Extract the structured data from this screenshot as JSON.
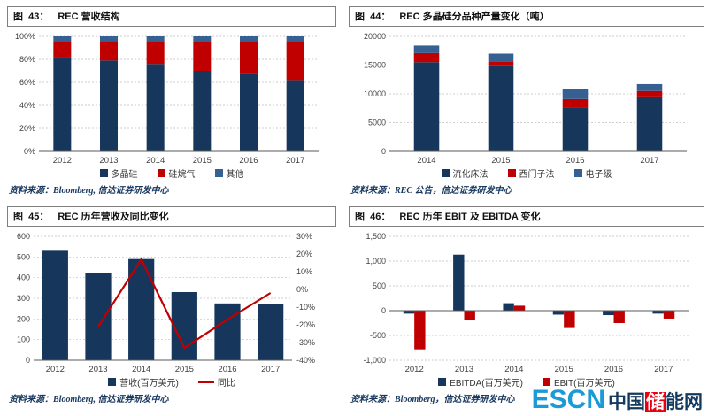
{
  "watermark": {
    "en": "ESCN",
    "cn_left": "中国",
    "cn_red": "储",
    "cn_right": "能网"
  },
  "panels": [
    {
      "fig_label": "图  43：",
      "title": "REC 营收结构",
      "source": "资料来源：Bloomberg, 信达证券研发中心"
    },
    {
      "fig_label": "图  44：",
      "title": "REC 多晶硅分品种产量变化（吨）",
      "source": "资料来源：REC 公告，信达证券研发中心"
    },
    {
      "fig_label": "图  45：",
      "title": "REC 历年营收及同比变化",
      "source": "资料来源：Bloomberg, 信达证券研发中心"
    },
    {
      "fig_label": "图  46：",
      "title": "REC 历年 EBIT 及 EBITDA 变化",
      "source": "资料来源：Bloomberg，信达证券研发中心"
    }
  ],
  "chart_data": [
    {
      "type": "stacked-bar",
      "title": "REC 营收结构",
      "categories": [
        "2012",
        "2013",
        "2014",
        "2015",
        "2016",
        "2017"
      ],
      "series": [
        {
          "name": "多晶硅",
          "color": "#16365C",
          "values": [
            82,
            79,
            76,
            70,
            67,
            62
          ]
        },
        {
          "name": "硅烷气",
          "color": "#C00000",
          "values": [
            14,
            17,
            20,
            25,
            28,
            34
          ]
        },
        {
          "name": "其他",
          "color": "#376092",
          "values": [
            4,
            4,
            4,
            5,
            5,
            4
          ]
        }
      ],
      "ylim": [
        0,
        100
      ],
      "yticks": [
        {
          "v": 0,
          "label": "0%"
        },
        {
          "v": 20,
          "label": "20%"
        },
        {
          "v": 40,
          "label": "40%"
        },
        {
          "v": 60,
          "label": "60%"
        },
        {
          "v": 80,
          "label": "80%"
        },
        {
          "v": 100,
          "label": "100%"
        }
      ],
      "grid": true,
      "legend_position": "bottom"
    },
    {
      "type": "stacked-bar",
      "title": "REC 多晶硅分品种产量变化（吨）",
      "categories": [
        "2014",
        "2015",
        "2016",
        "2017"
      ],
      "series": [
        {
          "name": "流化床法",
          "color": "#16365C",
          "values": [
            15500,
            14800,
            7600,
            9400
          ]
        },
        {
          "name": "西门子法",
          "color": "#C00000",
          "values": [
            1600,
            800,
            1500,
            1100
          ]
        },
        {
          "name": "电子级",
          "color": "#376092",
          "values": [
            1300,
            1400,
            1700,
            1200
          ]
        }
      ],
      "ylim": [
        0,
        20000
      ],
      "yticks": [
        {
          "v": 0,
          "label": "0"
        },
        {
          "v": 5000,
          "label": "5000"
        },
        {
          "v": 10000,
          "label": "10000"
        },
        {
          "v": 15000,
          "label": "15000"
        },
        {
          "v": 20000,
          "label": "20000"
        }
      ],
      "grid": true,
      "legend_position": "bottom"
    },
    {
      "type": "bar-line",
      "title": "REC 历年营收及同比变化",
      "categories": [
        "2012",
        "2013",
        "2014",
        "2015",
        "2016",
        "2017"
      ],
      "bar_series": {
        "name": "营收(百万美元)",
        "color": "#16365C",
        "axis": "left",
        "values": [
          530,
          420,
          490,
          330,
          275,
          270
        ]
      },
      "line_series": {
        "name": "同比",
        "color": "#C00000",
        "axis": "right",
        "values": [
          null,
          -21,
          17,
          -33,
          -17,
          -2
        ]
      },
      "ylim_left": [
        0,
        600
      ],
      "yticks_left": [
        {
          "v": 0,
          "label": "0"
        },
        {
          "v": 100,
          "label": "100"
        },
        {
          "v": 200,
          "label": "200"
        },
        {
          "v": 300,
          "label": "300"
        },
        {
          "v": 400,
          "label": "400"
        },
        {
          "v": 500,
          "label": "500"
        },
        {
          "v": 600,
          "label": "600"
        }
      ],
      "ylim_right": [
        -40,
        30
      ],
      "yticks_right": [
        {
          "v": 30,
          "label": "30%"
        },
        {
          "v": 20,
          "label": "20%"
        },
        {
          "v": 10,
          "label": "10%"
        },
        {
          "v": 0,
          "label": "0%"
        },
        {
          "v": -10,
          "label": "-10%"
        },
        {
          "v": -20,
          "label": "-20%"
        },
        {
          "v": -30,
          "label": "-30%"
        },
        {
          "v": -40,
          "label": "-40%"
        }
      ],
      "grid": true,
      "legend_position": "bottom"
    },
    {
      "type": "grouped-bar",
      "title": "REC 历年 EBIT 及 EBITDA 变化",
      "categories": [
        "2012",
        "2013",
        "2014",
        "2015",
        "2016",
        "2017"
      ],
      "series": [
        {
          "name": "EBITDA(百万美元)",
          "color": "#16365C",
          "values": [
            -60,
            1130,
            150,
            -80,
            -90,
            -60
          ]
        },
        {
          "name": "EBIT(百万美元)",
          "color": "#C00000",
          "values": [
            -780,
            -180,
            100,
            -350,
            -250,
            -160
          ]
        }
      ],
      "ylim": [
        -1000,
        1500
      ],
      "yticks": [
        {
          "v": -1000,
          "label": "-1,000"
        },
        {
          "v": -500,
          "label": "-500"
        },
        {
          "v": 0,
          "label": "0"
        },
        {
          "v": 500,
          "label": "500"
        },
        {
          "v": 1000,
          "label": "1,000"
        },
        {
          "v": 1500,
          "label": "1,500"
        }
      ],
      "grid": true,
      "legend_position": "bottom"
    }
  ]
}
